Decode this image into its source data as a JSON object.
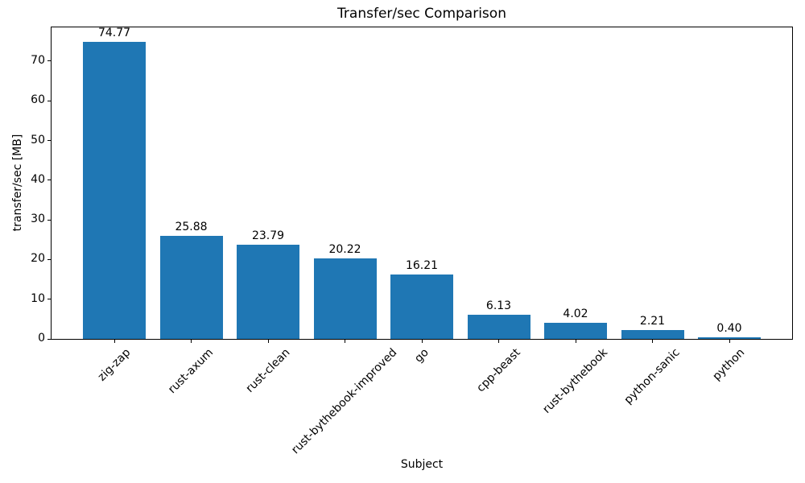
{
  "chart_data": {
    "type": "bar",
    "title": "Transfer/sec Comparison",
    "xlabel": "Subject",
    "ylabel": "transfer/sec [MB]",
    "categories": [
      "zig-zap",
      "rust-axum",
      "rust-clean",
      "rust-bythebook-improved",
      "go",
      "cpp-beast",
      "rust-bythebook",
      "python-sanic",
      "python"
    ],
    "values": [
      74.77,
      25.88,
      23.79,
      20.22,
      16.21,
      6.13,
      4.02,
      2.21,
      0.4
    ],
    "value_labels": [
      "74.77",
      "25.88",
      "23.79",
      "20.22",
      "16.21",
      "6.13",
      "4.02",
      "2.21",
      "0.40"
    ],
    "ytick_labels": [
      "0",
      "10",
      "20",
      "30",
      "40",
      "50",
      "60",
      "70"
    ],
    "yticks": [
      0,
      10,
      20,
      30,
      40,
      50,
      60,
      70
    ],
    "ylim": [
      0,
      78.5
    ],
    "xtick_rotation_deg": 45,
    "grid": false,
    "legend": "none",
    "bar_color": "#1f77b4",
    "axis_color": "#000000",
    "text_color": "#000000",
    "background_color": "#ffffff"
  }
}
